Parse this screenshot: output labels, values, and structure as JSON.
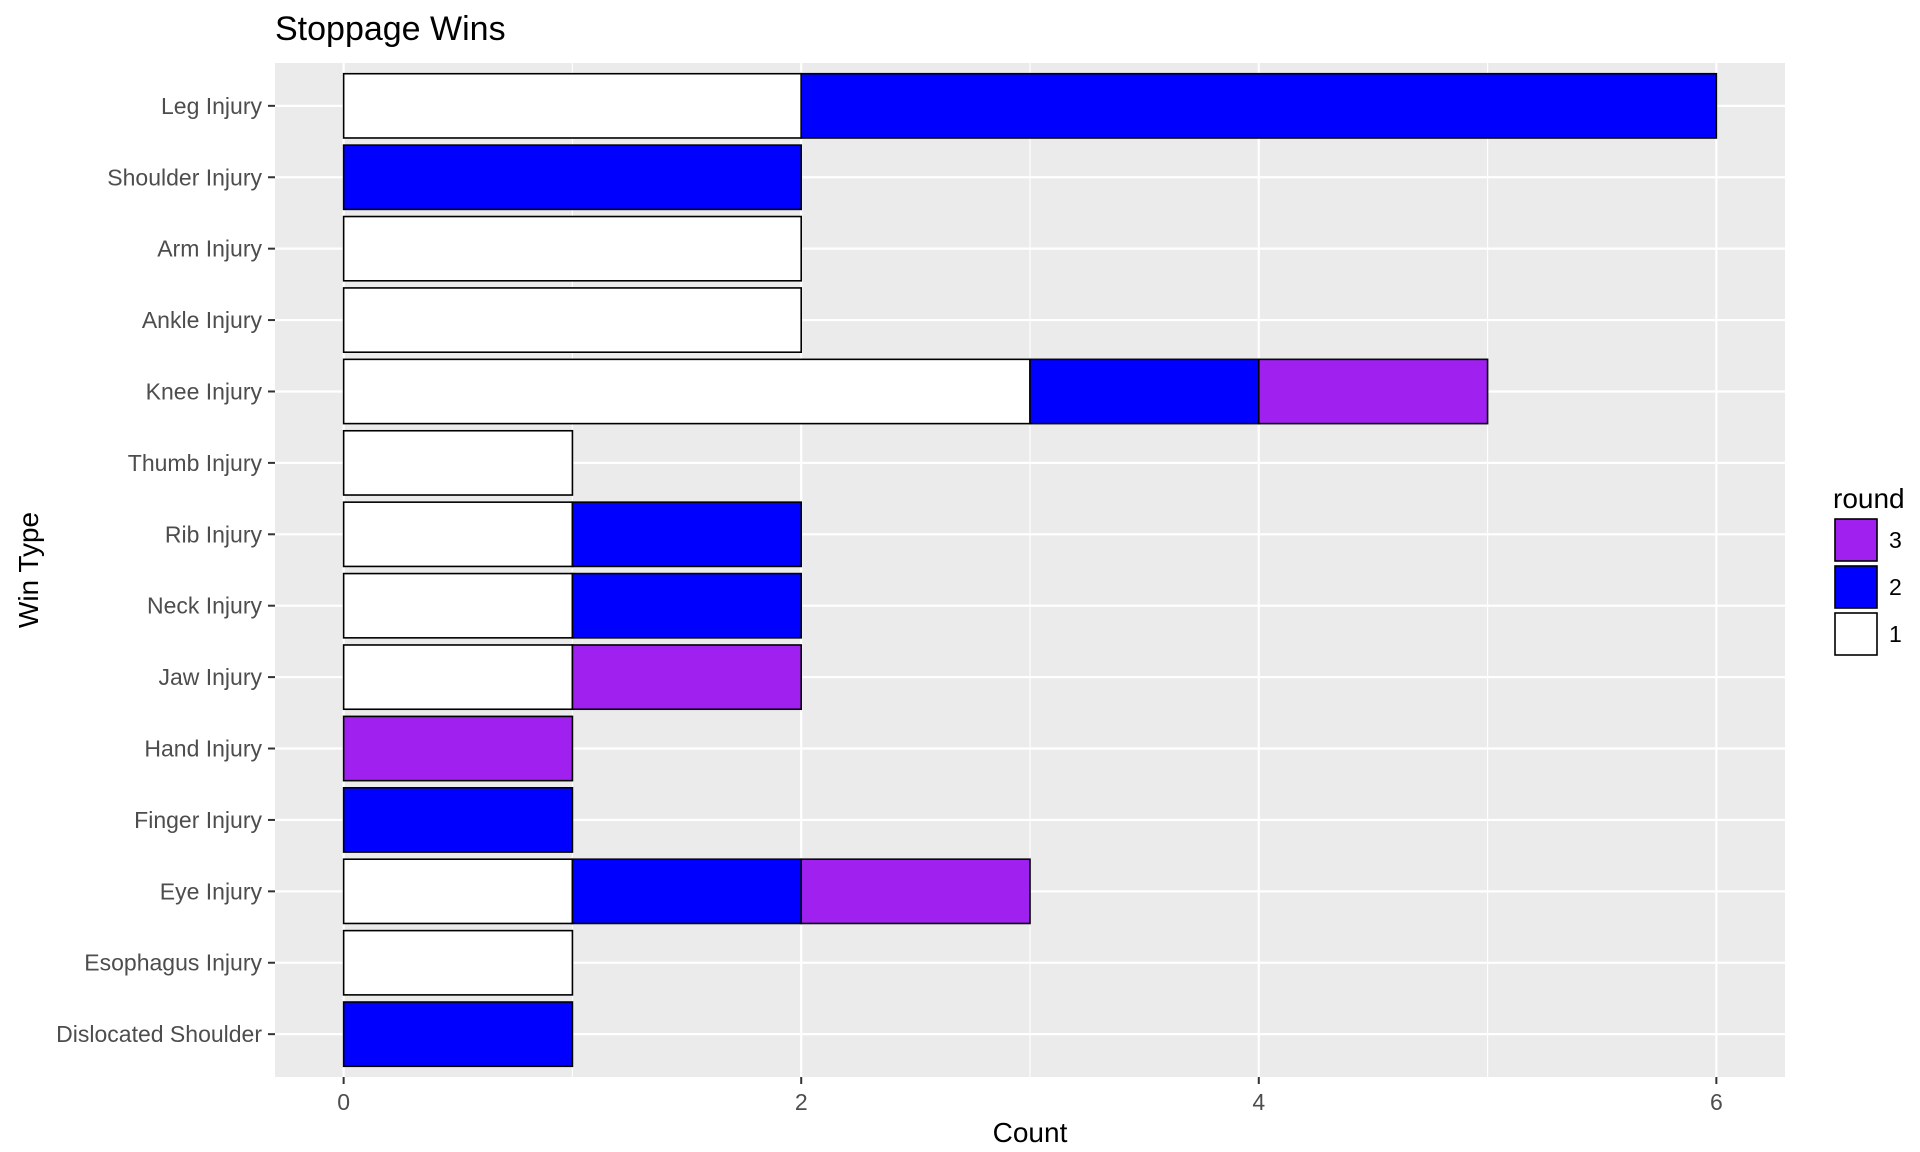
{
  "chart_data": {
    "type": "bar",
    "orientation": "horizontal",
    "stacked": true,
    "title": "Stoppage Wins",
    "xlabel": "Count",
    "ylabel": "Win Type",
    "xlim": [
      -0.3,
      6.3
    ],
    "x_ticks": [
      0,
      2,
      4,
      6
    ],
    "grid": true,
    "legend": {
      "title": "round",
      "placement": "right",
      "entries": [
        {
          "label": "3",
          "color": "#A020F0"
        },
        {
          "label": "2",
          "color": "#0000FF"
        },
        {
          "label": "1",
          "color": "#FFFFFF"
        }
      ]
    },
    "categories": [
      "Leg Injury",
      "Shoulder Injury",
      "Arm Injury",
      "Ankle Injury",
      "Knee Injury",
      "Thumb Injury",
      "Rib Injury",
      "Neck Injury",
      "Jaw Injury",
      "Hand Injury",
      "Finger Injury",
      "Eye Injury",
      "Esophagus Injury",
      "Dislocated Shoulder"
    ],
    "series": [
      {
        "name": "1",
        "color": "#FFFFFF",
        "values": [
          2,
          0,
          2,
          2,
          3,
          1,
          1,
          1,
          1,
          0,
          0,
          1,
          1,
          0
        ]
      },
      {
        "name": "2",
        "color": "#0000FF",
        "values": [
          4,
          2,
          0,
          0,
          1,
          0,
          1,
          1,
          0,
          0,
          1,
          1,
          0,
          1
        ]
      },
      {
        "name": "3",
        "color": "#A020F0",
        "values": [
          0,
          0,
          0,
          0,
          1,
          0,
          0,
          0,
          1,
          1,
          0,
          1,
          0,
          0
        ]
      }
    ]
  }
}
